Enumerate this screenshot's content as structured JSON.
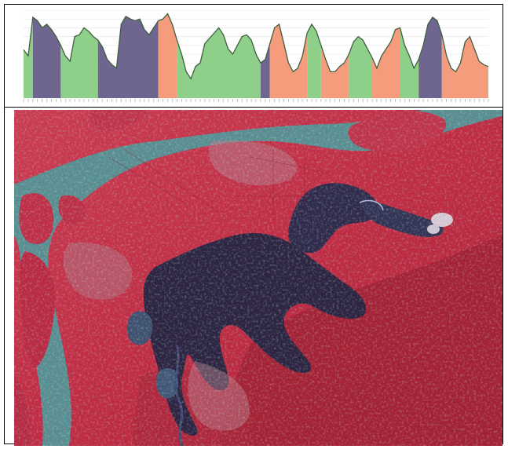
{
  "figure": {
    "upper_panel": "spectral-profile-chart",
    "lower_panel": "false-color-satellite-image"
  },
  "colors": {
    "purple": "#6f6690",
    "green": "#8ecf8a",
    "salmon": "#f49c7c",
    "profile_line": "#3f5f3f",
    "vegetation_red": "#d2243a",
    "water_teal": "#46a7a6",
    "water_dark": "#0d1a3a"
  },
  "chart_data": {
    "type": "area",
    "title": "",
    "xlabel": "",
    "ylabel": "",
    "ylim": [
      0,
      100
    ],
    "x": [
      0,
      1,
      2,
      3,
      4,
      5,
      6,
      7,
      8,
      9,
      10,
      11,
      12,
      13,
      14,
      15,
      16,
      17,
      18,
      19,
      20,
      21,
      22,
      23,
      24,
      25,
      26,
      27,
      28,
      29,
      30,
      31,
      32,
      33,
      34,
      35,
      36,
      37,
      38,
      39,
      40,
      41,
      42,
      43,
      44,
      45,
      46,
      47,
      48,
      49,
      50,
      51,
      52,
      53,
      54,
      55,
      56,
      57,
      58,
      59,
      60,
      61,
      62,
      63,
      64,
      65,
      66,
      67,
      68,
      69,
      70,
      71,
      72,
      73,
      74,
      75,
      76,
      77,
      78,
      79,
      80,
      81,
      82,
      83,
      84,
      85,
      86,
      87,
      88,
      89,
      90,
      91,
      92,
      93,
      94,
      95,
      96,
      97,
      98,
      99,
      100
    ],
    "y": [
      55,
      48,
      92,
      88,
      80,
      84,
      78,
      70,
      60,
      48,
      42,
      70,
      72,
      80,
      76,
      70,
      66,
      58,
      44,
      38,
      34,
      84,
      93,
      90,
      88,
      90,
      78,
      72,
      80,
      88,
      90,
      96,
      84,
      66,
      50,
      30,
      22,
      36,
      40,
      62,
      68,
      74,
      80,
      72,
      56,
      50,
      60,
      70,
      72,
      66,
      50,
      40,
      44,
      62,
      80,
      84,
      62,
      40,
      30,
      34,
      48,
      74,
      84,
      76,
      60,
      44,
      30,
      30,
      36,
      40,
      50,
      64,
      70,
      66,
      56,
      46,
      34,
      48,
      56,
      64,
      78,
      80,
      60,
      48,
      34,
      44,
      60,
      84,
      92,
      88,
      72,
      48,
      34,
      30,
      40,
      64,
      70,
      56,
      42,
      38,
      36
    ],
    "segments": [
      {
        "from": 0,
        "to": 2,
        "color": "green"
      },
      {
        "from": 2,
        "to": 8,
        "color": "purple"
      },
      {
        "from": 8,
        "to": 16,
        "color": "green"
      },
      {
        "from": 16,
        "to": 29,
        "color": "purple"
      },
      {
        "from": 29,
        "to": 33,
        "color": "salmon"
      },
      {
        "from": 33,
        "to": 51,
        "color": "green"
      },
      {
        "from": 51,
        "to": 53,
        "color": "purple"
      },
      {
        "from": 53,
        "to": 61,
        "color": "salmon"
      },
      {
        "from": 61,
        "to": 64,
        "color": "green"
      },
      {
        "from": 64,
        "to": 70,
        "color": "salmon"
      },
      {
        "from": 70,
        "to": 75,
        "color": "green"
      },
      {
        "from": 75,
        "to": 81,
        "color": "salmon"
      },
      {
        "from": 81,
        "to": 85,
        "color": "green"
      },
      {
        "from": 85,
        "to": 90,
        "color": "purple"
      },
      {
        "from": 90,
        "to": 100,
        "color": "salmon"
      }
    ],
    "grid": true
  }
}
